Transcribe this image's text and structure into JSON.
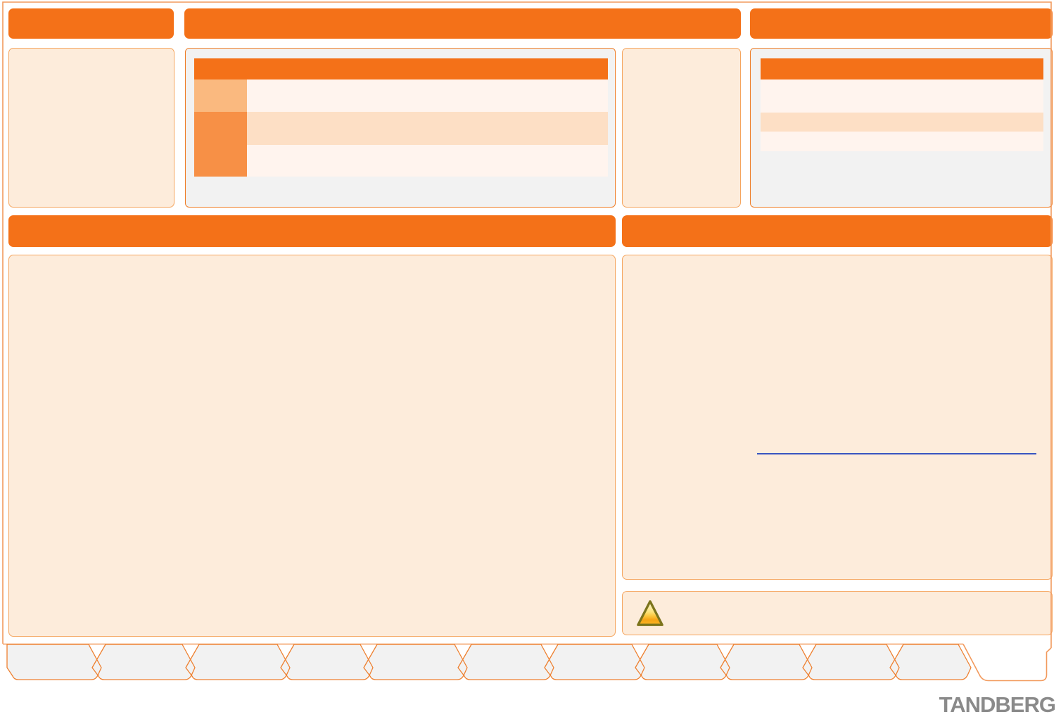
{
  "logo": {
    "text": "TANDBERG",
    "color": "#8a8a8a"
  },
  "link": {
    "text": "",
    "underline_color": "#3a55c0"
  },
  "colors": {
    "accent_orange": "#f47118",
    "panel_peach_bg": "#fdecdb",
    "panel_peach_border": "#f5a55e",
    "panel_gray_bg": "#f2f2f2",
    "panel_gray_border": "#ef7e28",
    "table_row_pale": "#fff4ee",
    "table_row_peach": "#fddfc5",
    "table_cell_light_orange": "#fab97f",
    "table_cell_orange": "#f79046",
    "frame_border": "#f29a5d",
    "tab_fill": "#f2f2f2",
    "tab_border": "#ee8030",
    "link_blue": "#3a55c0",
    "logo_gray": "#8a8a8a",
    "warning_fill_top": "#fdf8e0",
    "warning_fill_bottom": "#f6a415",
    "warning_border": "#7c741c"
  },
  "bottom_tabs": {
    "count": 11,
    "labels": [
      "",
      "",
      "",
      "",
      "",
      "",
      "",
      "",
      "",
      "",
      ""
    ]
  },
  "tables": {
    "center_table": {
      "header_text": "",
      "row_count": 3
    },
    "right_table": {
      "header_text": "",
      "row_count": 3
    }
  }
}
